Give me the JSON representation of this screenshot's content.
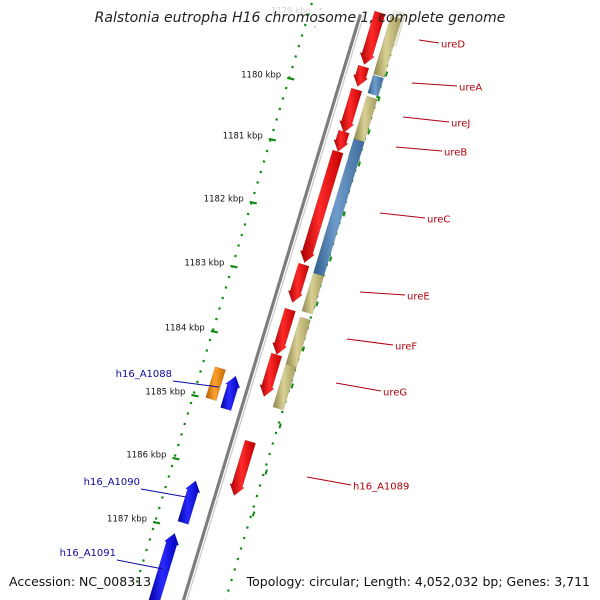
{
  "title": "Ralstonia eutropha H16 chromosome 1, complete genome",
  "footer": {
    "accession": "Accession: NC_008313",
    "summary": "Topology: circular; Length: 4,052,032 bp; Genes: 3,711"
  },
  "colors": {
    "forward_cds": "#e51515",
    "reverse_cds": "#1a1ae0",
    "blast_khaki": "#bcb36e",
    "blast_blue": "#4b7fb4",
    "blast_orange": "#ef8a12",
    "ticks": "#138a13",
    "backbone": "#8c8c8c",
    "label_red": "#b0000f",
    "label_blue": "#0a0a9c"
  },
  "kbp_ticks": [
    {
      "label": "1180 kbp"
    },
    {
      "label": "1181 kbp"
    },
    {
      "label": "1182 kbp"
    },
    {
      "label": "1183 kbp"
    },
    {
      "label": "1184 kbp"
    },
    {
      "label": "1185 kbp"
    },
    {
      "label": "1186 kbp"
    },
    {
      "label": "1187 kbp"
    }
  ],
  "genes_forward": [
    {
      "name": "ureD",
      "feature": "forward_cds",
      "hit": "blast_khaki"
    },
    {
      "name": "ureA",
      "feature": "forward_cds",
      "hit": "blast_blue"
    },
    {
      "name": "ureJ",
      "feature": "forward_cds",
      "hit": "blast_khaki"
    },
    {
      "name": "ureB",
      "feature": "forward_cds",
      "hit": "blast_blue"
    },
    {
      "name": "ureC",
      "feature": "forward_cds",
      "hit": "blast_blue"
    },
    {
      "name": "ureE",
      "feature": "forward_cds",
      "hit": "blast_khaki"
    },
    {
      "name": "ureF",
      "feature": "forward_cds",
      "hit": "blast_khaki"
    },
    {
      "name": "ureG",
      "feature": "forward_cds",
      "hit": "blast_khaki"
    },
    {
      "name": "h16_A1089",
      "feature": "forward_cds",
      "hit": null
    }
  ],
  "genes_reverse": [
    {
      "name": "h16_A1088",
      "feature": "reverse_cds",
      "hit": "blast_orange"
    },
    {
      "name": "h16_A1090",
      "feature": "reverse_cds",
      "hit": null
    },
    {
      "name": "h16_A1091",
      "feature": "reverse_cds",
      "hit": null
    }
  ]
}
